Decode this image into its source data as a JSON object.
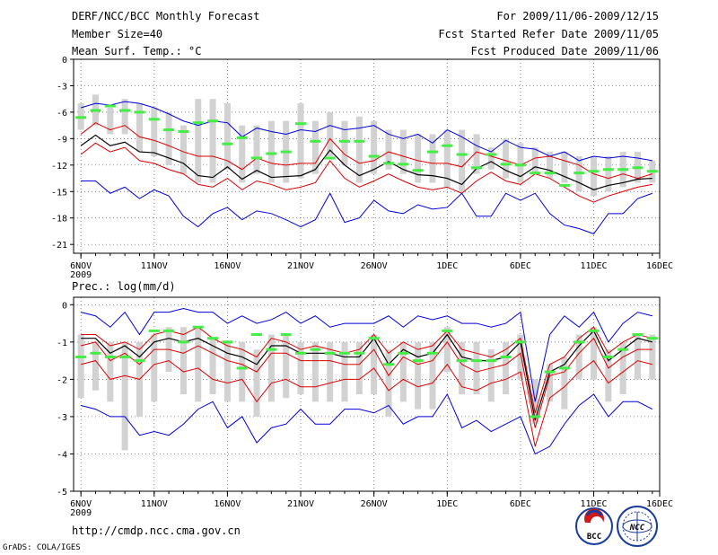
{
  "header": {
    "title": "DERF/NCC/BCC Monthly Forecast",
    "member_size": "Member Size=40",
    "variable": "Mean Surf. Temp.: °C",
    "forecast_period": "For 2009/11/06-2009/12/15",
    "fcst_started": "Fcst Started Refer Date 2009/11/05",
    "fcst_produced": "Fcst Produced Date 2009/11/06"
  },
  "footer": {
    "url": "http://cmdp.ncc.cma.gov.cn",
    "credit": "GrADS: COLA/IGES",
    "logo_bcc": "BCC",
    "logo_ncc": "NCC"
  },
  "colors": {
    "max": "#0000dd",
    "min": "#0000dd",
    "mean": "#000000",
    "band": "#dd0000",
    "ensemble_bar": "#d2d2d2",
    "obs": "#44ee44",
    "grid": "#555555"
  },
  "chart_data": [
    {
      "type": "line",
      "title": "Mean Surf. Temp.: °C",
      "xlabel": "",
      "ylabel": "",
      "x": [
        0,
        1,
        2,
        3,
        4,
        5,
        6,
        7,
        8,
        9,
        10,
        11,
        12,
        13,
        14,
        15,
        16,
        17,
        18,
        19,
        20,
        21,
        22,
        23,
        24,
        25,
        26,
        27,
        28,
        29,
        30,
        31,
        32,
        33,
        34,
        35,
        36,
        37,
        38,
        39
      ],
      "xlim": [
        -0.5,
        39.5
      ],
      "ylim": [
        -22,
        0
      ],
      "yticks": [
        0,
        -3,
        -6,
        -9,
        -12,
        -15,
        -18,
        -21
      ],
      "xtick_labels": [
        "6NOV",
        "11NOV",
        "16NOV",
        "21NOV",
        "26NOV",
        "1DEC",
        "6DEC",
        "11DEC",
        "16DEC"
      ],
      "xtick_positions": [
        0,
        5,
        10,
        15,
        20,
        25,
        30,
        35,
        40
      ],
      "year_label": "2009",
      "grid": true,
      "series": [
        {
          "name": "ensemble max",
          "values": [
            -5.5,
            -5.0,
            -5.2,
            -4.8,
            -5.0,
            -5.5,
            -6.2,
            -7.0,
            -7.5,
            -7.0,
            -7.2,
            -8.8,
            -7.8,
            -8.2,
            -8.5,
            -8.0,
            -8.2,
            -7.5,
            -8.0,
            -7.8,
            -7.5,
            -8.5,
            -9.0,
            -8.5,
            -9.5,
            -8.0,
            -8.8,
            -9.8,
            -10.5,
            -9.2,
            -10.0,
            -10.2,
            -11.0,
            -10.5,
            -11.5,
            -11.0,
            -11.2,
            -11.0,
            -11.2,
            -11.5
          ]
        },
        {
          "name": "ensemble upper",
          "values": [
            -8.5,
            -7.2,
            -8.0,
            -7.5,
            -8.8,
            -9.2,
            -9.8,
            -10.5,
            -11.0,
            -11.0,
            -11.5,
            -12.5,
            -11.2,
            -11.8,
            -12.0,
            -11.8,
            -11.8,
            -9.0,
            -10.8,
            -11.8,
            -11.5,
            -10.5,
            -11.0,
            -11.5,
            -11.8,
            -11.8,
            -12.2,
            -10.5,
            -11.0,
            -11.5,
            -12.0,
            -11.2,
            -11.0,
            -11.5,
            -12.0,
            -13.0,
            -13.5,
            -13.0,
            -13.5,
            -13.0
          ]
        },
        {
          "name": "ensemble mean",
          "values": [
            -9.8,
            -8.6,
            -9.8,
            -9.4,
            -10.5,
            -10.6,
            -11.2,
            -11.8,
            -13.2,
            -13.4,
            -12.2,
            -13.6,
            -12.6,
            -13.4,
            -13.3,
            -13.2,
            -12.5,
            -10.3,
            -12.0,
            -13.2,
            -12.5,
            -11.6,
            -12.5,
            -13.1,
            -13.2,
            -13.5,
            -14.2,
            -12.4,
            -11.6,
            -12.6,
            -13.3,
            -12.2,
            -12.6,
            -13.3,
            -14.0,
            -14.8,
            -14.3,
            -14.0,
            -13.6,
            -13.5
          ]
        },
        {
          "name": "ensemble lower",
          "values": [
            -10.8,
            -9.5,
            -10.5,
            -10.0,
            -11.5,
            -11.8,
            -12.5,
            -13.0,
            -14.2,
            -14.5,
            -13.5,
            -14.8,
            -13.8,
            -14.2,
            -14.8,
            -14.5,
            -14.0,
            -11.5,
            -13.5,
            -14.5,
            -13.8,
            -13.0,
            -13.8,
            -14.5,
            -14.8,
            -14.5,
            -15.2,
            -13.8,
            -12.8,
            -13.8,
            -14.2,
            -13.0,
            -13.5,
            -14.5,
            -15.5,
            -16.2,
            -15.5,
            -15.0,
            -14.5,
            -14.2
          ]
        },
        {
          "name": "ensemble min",
          "values": [
            -13.8,
            -13.8,
            -15.2,
            -14.5,
            -15.8,
            -14.8,
            -15.5,
            -17.8,
            -19.0,
            -17.5,
            -16.8,
            -18.2,
            -17.2,
            -17.5,
            -18.2,
            -19.0,
            -18.2,
            -15.2,
            -18.5,
            -18.0,
            -16.0,
            -17.2,
            -17.5,
            -16.5,
            -17.0,
            -16.8,
            -15.2,
            -17.8,
            -17.8,
            -15.2,
            -16.0,
            -15.2,
            -17.5,
            -18.8,
            -19.2,
            -19.8,
            -17.5,
            -17.5,
            -15.8,
            -15.2
          ]
        },
        {
          "name": "observation",
          "values": [
            -6.6,
            -5.8,
            -5.3,
            -5.8,
            -6.0,
            -6.8,
            -8.0,
            -8.2,
            -7.2,
            -7.0,
            -9.6,
            -8.9,
            -11.2,
            -10.7,
            -10.5,
            -7.3,
            -9.3,
            -11.2,
            -9.3,
            -9.3,
            -11.0,
            -11.8,
            -11.9,
            -12.6,
            -10.5,
            -9.8,
            -10.8,
            -12.3,
            -10.8,
            -11.9,
            -12.0,
            -12.9,
            -12.9,
            -14.3,
            -12.9,
            -12.7,
            -12.5,
            -12.5,
            -12.3,
            -12.7
          ]
        },
        {
          "name": "spread high",
          "values": [
            -5.0,
            -4.0,
            -5.5,
            -4.5,
            -5.0,
            -5.5,
            -6.0,
            -7.5,
            -4.5,
            -4.5,
            -5.0,
            -7.5,
            -7.5,
            -7.0,
            -7.0,
            -5.0,
            -7.0,
            -6.0,
            -7.0,
            -6.5,
            -7.0,
            -8.0,
            -8.0,
            -8.5,
            -8.5,
            -8.0,
            -8.0,
            -8.5,
            -10.0,
            -9.0,
            -9.5,
            -10.0,
            -10.5,
            -10.5,
            -11.0,
            -11.0,
            -11.0,
            -10.5,
            -10.5,
            -11.5
          ]
        },
        {
          "name": "spread low",
          "values": [
            -8.0,
            -7.5,
            -8.5,
            -8.5,
            -10.5,
            -11.0,
            -12.0,
            -13.0,
            -14.0,
            -14.0,
            -12.5,
            -14.0,
            -13.0,
            -14.0,
            -14.0,
            -13.5,
            -13.0,
            -11.0,
            -12.0,
            -14.0,
            -13.0,
            -12.5,
            -13.0,
            -14.0,
            -14.0,
            -14.5,
            -15.0,
            -13.0,
            -12.5,
            -13.5,
            -14.0,
            -13.0,
            -13.5,
            -14.0,
            -15.0,
            -15.5,
            -15.0,
            -14.5,
            -14.0,
            -14.0
          ]
        }
      ]
    },
    {
      "type": "line",
      "title": "Prec.: log(mm/d)",
      "xlabel": "",
      "ylabel": "",
      "x": [
        0,
        1,
        2,
        3,
        4,
        5,
        6,
        7,
        8,
        9,
        10,
        11,
        12,
        13,
        14,
        15,
        16,
        17,
        18,
        19,
        20,
        21,
        22,
        23,
        24,
        25,
        26,
        27,
        28,
        29,
        30,
        31,
        32,
        33,
        34,
        35,
        36,
        37,
        38,
        39
      ],
      "xlim": [
        -0.5,
        39.5
      ],
      "ylim": [
        -5,
        0.2
      ],
      "yticks": [
        0,
        -1,
        -2,
        -3,
        -4,
        -5
      ],
      "xtick_labels": [
        "6NOV",
        "11NOV",
        "16NOV",
        "21NOV",
        "26NOV",
        "1DEC",
        "6DEC",
        "11DEC",
        "16DEC"
      ],
      "xtick_positions": [
        0,
        5,
        10,
        15,
        20,
        25,
        30,
        35,
        40
      ],
      "year_label": "2009",
      "grid": true,
      "series": [
        {
          "name": "ensemble max",
          "values": [
            -0.2,
            -0.3,
            -0.6,
            -0.2,
            -0.8,
            -0.2,
            -0.2,
            -0.1,
            -0.2,
            -0.2,
            -0.5,
            -0.3,
            -0.5,
            -0.4,
            -0.2,
            -0.5,
            -0.3,
            -0.6,
            -0.5,
            -0.5,
            -0.5,
            -0.3,
            -0.6,
            -0.3,
            -0.4,
            -0.3,
            -0.5,
            -0.5,
            -0.6,
            -0.5,
            -0.2,
            -2.6,
            -0.8,
            -0.3,
            -0.6,
            -0.2,
            -1.0,
            -0.5,
            -0.2,
            -0.3
          ]
        },
        {
          "name": "ensemble upper",
          "values": [
            -0.8,
            -0.8,
            -1.1,
            -1.0,
            -1.2,
            -0.8,
            -0.7,
            -0.8,
            -0.6,
            -0.9,
            -1.1,
            -1.2,
            -1.4,
            -0.9,
            -1.0,
            -1.2,
            -1.1,
            -1.2,
            -1.3,
            -1.2,
            -0.8,
            -1.3,
            -1.0,
            -1.2,
            -1.1,
            -0.7,
            -1.2,
            -1.3,
            -1.4,
            -1.2,
            -0.9,
            -2.9,
            -1.6,
            -1.4,
            -0.9,
            -0.6,
            -1.3,
            -1.0,
            -0.8,
            -0.9
          ]
        },
        {
          "name": "ensemble mean",
          "values": [
            -0.9,
            -0.9,
            -1.3,
            -1.1,
            -1.4,
            -1.0,
            -0.9,
            -1.0,
            -0.9,
            -1.1,
            -1.3,
            -1.4,
            -1.6,
            -1.1,
            -1.1,
            -1.3,
            -1.3,
            -1.3,
            -1.4,
            -1.4,
            -0.9,
            -1.6,
            -1.2,
            -1.4,
            -1.3,
            -0.8,
            -1.4,
            -1.5,
            -1.5,
            -1.4,
            -1.0,
            -3.1,
            -1.8,
            -1.6,
            -1.1,
            -0.7,
            -1.5,
            -1.2,
            -0.9,
            -1.0
          ]
        },
        {
          "name": "ensemble lower",
          "values": [
            -1.1,
            -1.0,
            -1.5,
            -1.3,
            -1.6,
            -1.2,
            -1.2,
            -1.3,
            -1.1,
            -1.3,
            -1.5,
            -1.6,
            -1.8,
            -1.3,
            -1.3,
            -1.5,
            -1.5,
            -1.5,
            -1.6,
            -1.6,
            -1.2,
            -1.9,
            -1.4,
            -1.6,
            -1.5,
            -1.0,
            -1.6,
            -1.8,
            -1.7,
            -1.6,
            -1.3,
            -3.3,
            -1.9,
            -1.8,
            -1.3,
            -0.9,
            -1.7,
            -1.4,
            -1.2,
            -1.2
          ]
        },
        {
          "name": "ensemble lower band",
          "values": [
            -1.6,
            -1.5,
            -2.0,
            -1.9,
            -2.0,
            -1.6,
            -1.5,
            -1.8,
            -1.7,
            -2.0,
            -2.1,
            -2.0,
            -2.6,
            -2.1,
            -2.0,
            -2.2,
            -2.2,
            -2.1,
            -2.0,
            -2.0,
            -1.7,
            -2.3,
            -2.0,
            -2.2,
            -2.1,
            -1.6,
            -2.2,
            -2.3,
            -2.1,
            -2.0,
            -1.8,
            -3.8,
            -2.5,
            -2.2,
            -1.8,
            -1.5,
            -2.1,
            -1.8,
            -1.5,
            -1.6
          ]
        },
        {
          "name": "ensemble min",
          "values": [
            -2.7,
            -2.8,
            -3.0,
            -3.0,
            -3.5,
            -3.4,
            -3.5,
            -3.2,
            -2.8,
            -2.6,
            -3.3,
            -3.0,
            -3.7,
            -3.3,
            -3.2,
            -2.8,
            -3.2,
            -3.2,
            -2.8,
            -2.8,
            -2.9,
            -2.7,
            -3.2,
            -3.0,
            -3.0,
            -2.4,
            -3.3,
            -3.1,
            -3.4,
            -3.2,
            -3.0,
            -4.0,
            -3.8,
            -3.2,
            -2.7,
            -2.4,
            -3.0,
            -2.6,
            -2.6,
            -2.8
          ]
        },
        {
          "name": "observation",
          "values": [
            -1.4,
            -1.3,
            -1.4,
            -1.4,
            -1.5,
            -0.7,
            -0.7,
            -1.0,
            -0.6,
            -0.9,
            -1.0,
            -1.7,
            -0.8,
            -1.2,
            -0.8,
            -1.3,
            -1.2,
            -1.3,
            -1.3,
            -1.3,
            -0.9,
            -1.6,
            -1.3,
            -1.5,
            -1.3,
            -0.7,
            -1.5,
            -1.5,
            -1.5,
            -1.4,
            -1.0,
            -3.0,
            -1.8,
            -1.7,
            -1.0,
            -0.7,
            -1.4,
            -1.2,
            -0.8,
            -0.9
          ]
        },
        {
          "name": "spread high",
          "values": [
            -0.8,
            -1.0,
            -1.0,
            -1.0,
            -1.0,
            -0.8,
            -0.6,
            -0.6,
            -0.6,
            -0.9,
            -1.0,
            -1.0,
            -1.2,
            -0.8,
            -0.8,
            -1.0,
            -1.0,
            -1.0,
            -1.0,
            -1.0,
            -0.8,
            -1.2,
            -1.0,
            -1.0,
            -1.0,
            -0.6,
            -1.0,
            -1.0,
            -1.2,
            -1.0,
            -0.8,
            -2.0,
            -1.6,
            -1.4,
            -0.8,
            -0.6,
            -1.2,
            -1.0,
            -0.8,
            -0.8
          ]
        },
        {
          "name": "spread low",
          "values": [
            -2.5,
            -2.3,
            -2.6,
            -3.9,
            -3.0,
            -2.6,
            -1.8,
            -2.4,
            -2.6,
            -2.4,
            -2.6,
            -2.6,
            -3.0,
            -2.6,
            -2.5,
            -2.4,
            -2.6,
            -2.6,
            -2.6,
            -2.4,
            -2.4,
            -3.0,
            -2.6,
            -2.8,
            -2.8,
            -1.8,
            -2.4,
            -2.4,
            -2.6,
            -2.4,
            -2.0,
            -3.2,
            -2.6,
            -2.8,
            -2.0,
            -2.0,
            -2.6,
            -2.4,
            -2.0,
            -2.0
          ]
        }
      ]
    }
  ]
}
